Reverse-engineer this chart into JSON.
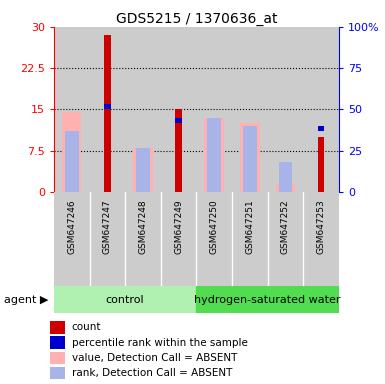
{
  "title": "GDS5215 / 1370636_at",
  "samples": [
    "GSM647246",
    "GSM647247",
    "GSM647248",
    "GSM647249",
    "GSM647250",
    "GSM647251",
    "GSM647252",
    "GSM647253"
  ],
  "red_count": [
    0.0,
    28.5,
    0.0,
    15.0,
    0.0,
    0.0,
    0.0,
    10.0
  ],
  "blue_rank_left": [
    0.0,
    16.0,
    0.0,
    13.5,
    0.0,
    0.0,
    0.0,
    12.0
  ],
  "pink_value": [
    14.5,
    0.0,
    8.0,
    0.0,
    13.5,
    12.5,
    1.5,
    0.0
  ],
  "lightblue_rank": [
    11.0,
    0.0,
    8.0,
    0.0,
    13.5,
    12.0,
    5.5,
    0.0
  ],
  "ylim_left": [
    0,
    30
  ],
  "ylim_right": [
    0,
    100
  ],
  "yticks_left": [
    0,
    7.5,
    15,
    22.5,
    30
  ],
  "ytick_labels_left": [
    "0",
    "7.5",
    "15",
    "22.5",
    "30"
  ],
  "yticks_right": [
    0,
    25,
    50,
    75,
    100
  ],
  "ytick_labels_right": [
    "0",
    "25",
    "50",
    "75",
    "100%"
  ],
  "group_labels": [
    "control",
    "hydrogen-saturated water"
  ],
  "group_ranges": [
    [
      0,
      3
    ],
    [
      4,
      7
    ]
  ],
  "group_color_light": "#b0f0b0",
  "group_color_dark": "#50dd50",
  "color_red": "#cc0000",
  "color_blue": "#0000cc",
  "color_pink": "#ffb0b0",
  "color_lightblue": "#a8b4e8",
  "color_sample_bg": "#cccccc",
  "legend_items": [
    [
      "#cc0000",
      "count"
    ],
    [
      "#0000cc",
      "percentile rank within the sample"
    ],
    [
      "#ffb0b0",
      "value, Detection Call = ABSENT"
    ],
    [
      "#a8b4e8",
      "rank, Detection Call = ABSENT"
    ]
  ]
}
